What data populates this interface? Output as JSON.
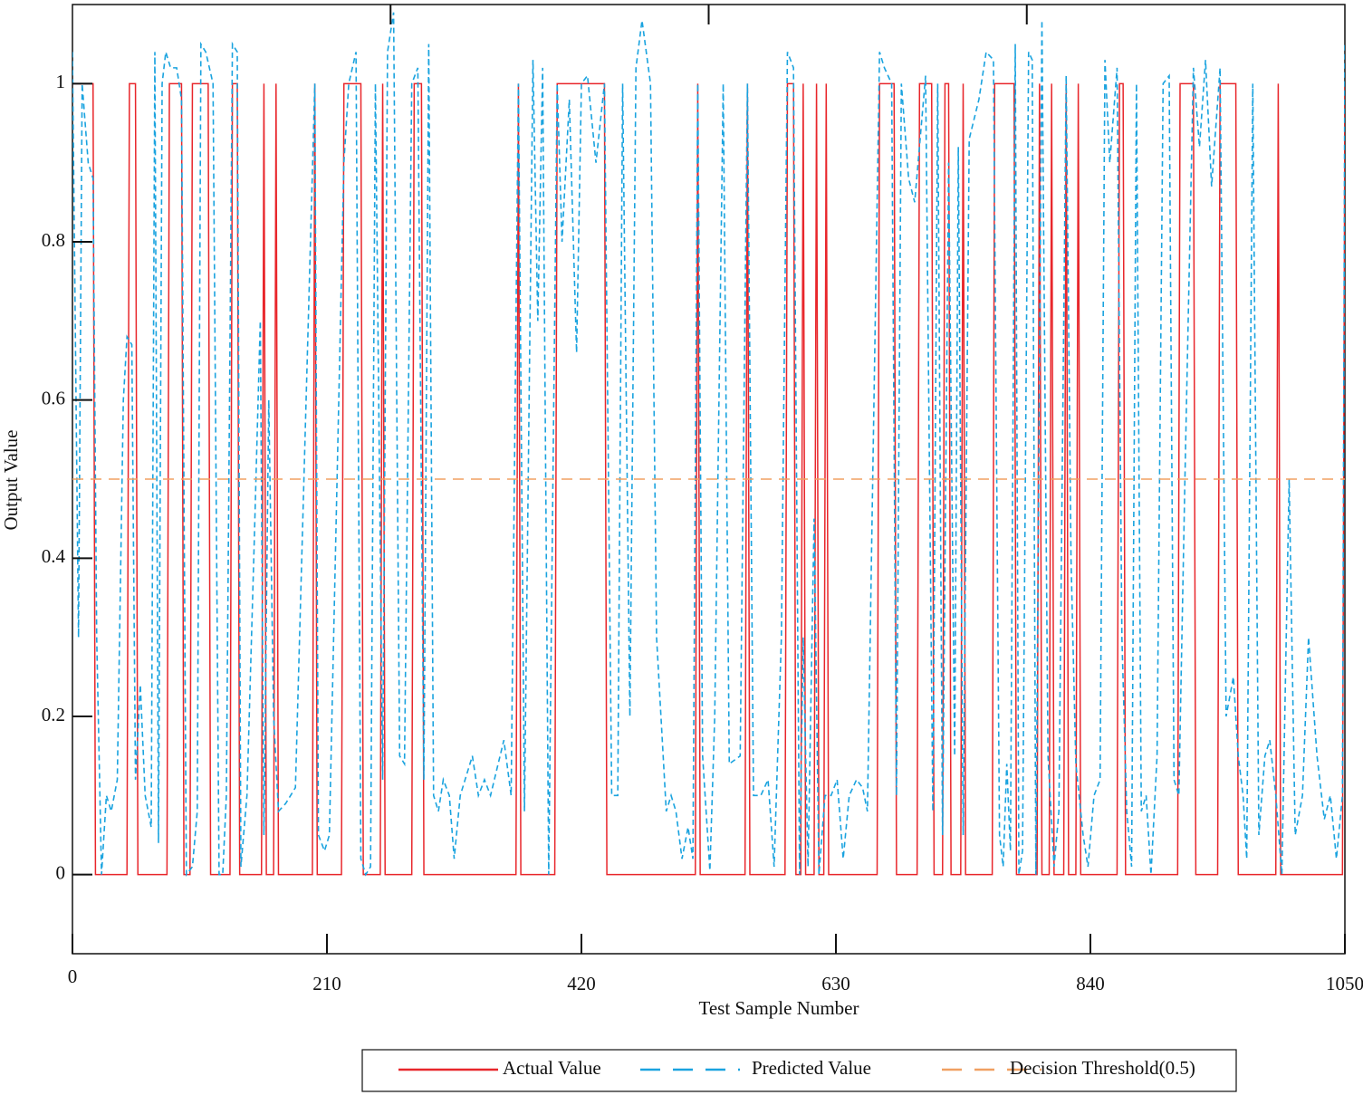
{
  "chart_data": {
    "type": "line",
    "xlabel": "Test Sample Number",
    "ylabel": "Output Value",
    "xlim": [
      0,
      1050
    ],
    "ylim": [
      -0.1,
      1.1
    ],
    "xticks": [
      0,
      210,
      420,
      630,
      840,
      1050
    ],
    "x2ticks": [
      262.5,
      525,
      787.5
    ],
    "yticks": [
      0,
      0.2,
      0.4,
      0.6,
      0.8,
      1
    ],
    "legend": "bottom",
    "series": [
      {
        "name": "Actual Value",
        "color": "#e8262b",
        "style": "solid",
        "x": [
          0,
          17,
          19,
          45,
          47,
          52,
          54,
          78,
          80,
          90,
          92,
          97,
          99,
          112,
          114,
          130,
          132,
          136,
          138,
          156,
          158,
          160,
          166,
          168,
          170,
          198,
          200,
          202,
          222,
          224,
          238,
          240,
          254,
          256,
          258,
          280,
          282,
          288,
          290,
          366,
          368,
          370,
          398,
          400,
          439,
          441,
          514,
          516,
          518,
          555,
          557,
          559,
          588,
          590,
          595,
          597,
          601,
          603,
          605,
          612,
          614,
          616,
          620,
          622,
          624,
          664,
          666,
          678,
          680,
          697,
          699,
          709,
          711,
          718,
          720,
          723,
          725,
          733,
          735,
          737,
          759,
          761,
          777,
          779,
          796,
          798,
          800,
          806,
          808,
          810,
          818,
          820,
          822,
          828,
          830,
          832,
          862,
          864,
          867,
          869,
          912,
          914,
          925,
          927,
          945,
          947,
          960,
          962,
          993,
          995,
          997,
          1048,
          1050
        ],
        "values": [
          1,
          1,
          0,
          0,
          1,
          1,
          0,
          0,
          1,
          1,
          0,
          0,
          1,
          1,
          0,
          0,
          1,
          1,
          0,
          0,
          1,
          0,
          0,
          1,
          0,
          0,
          1,
          0,
          0,
          1,
          1,
          0,
          0,
          1,
          0,
          0,
          1,
          1,
          0,
          0,
          1,
          0,
          0,
          1,
          1,
          0,
          0,
          1,
          0,
          0,
          1,
          0,
          0,
          1,
          1,
          0,
          0,
          1,
          0,
          0,
          1,
          0,
          0,
          1,
          0,
          0,
          1,
          1,
          0,
          0,
          1,
          1,
          0,
          0,
          1,
          1,
          0,
          0,
          1,
          0,
          0,
          1,
          1,
          0,
          0,
          1,
          0,
          0,
          1,
          0,
          0,
          1,
          0,
          0,
          1,
          0,
          0,
          1,
          1,
          0,
          0,
          1,
          1,
          0,
          0,
          1,
          1,
          0,
          0,
          1,
          0,
          0,
          1
        ]
      },
      {
        "name": "Predicted Value",
        "color": "#1aa3df",
        "style": "dashed",
        "x": [
          0,
          5,
          8,
          13,
          17,
          20,
          24,
          28,
          32,
          37,
          42,
          45,
          49,
          52,
          56,
          60,
          65,
          68,
          71,
          74,
          77,
          81,
          86,
          90,
          94,
          99,
          103,
          106,
          110,
          116,
          121,
          124,
          127,
          132,
          136,
          139,
          144,
          150,
          155,
          158,
          162,
          166,
          170,
          176,
          184,
          200,
          203,
          208,
          212,
          224,
          228,
          234,
          238,
          242,
          246,
          250,
          256,
          260,
          265,
          270,
          274,
          280,
          285,
          290,
          294,
          298,
          302,
          306,
          311,
          315,
          320,
          330,
          335,
          340,
          345,
          356,
          362,
          368,
          373,
          380,
          384,
          388,
          393,
          400,
          404,
          410,
          416,
          420,
          425,
          432,
          439,
          445,
          450,
          454,
          460,
          465,
          470,
          477,
          482,
          490,
          494,
          498,
          503,
          508,
          512,
          516,
          520,
          526,
          530,
          537,
          542,
          551,
          557,
          562,
          568,
          574,
          579,
          585,
          590,
          595,
          600,
          603,
          607,
          612,
          616,
          621,
          626,
          631,
          636,
          641,
          647,
          652,
          656,
          666,
          670,
          676,
          680,
          684,
          690,
          695,
          704,
          710,
          714,
          718,
          723,
          728,
          731,
          735,
          740,
          748,
          754,
          760,
          765,
          768,
          771,
          774,
          778,
          781,
          784,
          789,
          792,
          795,
          800,
          805,
          810,
          814,
          820,
          824,
          828,
          834,
          838,
          843,
          848,
          852,
          856,
          862,
          866,
          870,
          874,
          878,
          882,
          886,
          890,
          895,
          900,
          905,
          909,
          913,
          918,
          925,
          930,
          935,
          940,
          947,
          952,
          958,
          962,
          966,
          969,
          974,
          979,
          984,
          988,
          993,
          998,
          1004,
          1009,
          1015,
          1020,
          1027,
          1033,
          1038,
          1043,
          1048,
          1050
        ],
        "values": [
          1.04,
          0.3,
          1.0,
          0.9,
          0.88,
          0.3,
          0,
          0.1,
          0.08,
          0.12,
          0.6,
          0.68,
          0.67,
          0.12,
          0.24,
          0.1,
          0.06,
          1.04,
          0.04,
          1.0,
          1.04,
          1.02,
          1.02,
          0.98,
          0.0,
          0.01,
          0.08,
          1.05,
          1.04,
          1.0,
          0.0,
          0.0,
          0.1,
          1.05,
          1.04,
          0.01,
          0.1,
          0.42,
          0.7,
          0.05,
          0.6,
          0.2,
          0.08,
          0.09,
          0.11,
          1.0,
          0.05,
          0.03,
          0.05,
          0.9,
          1.0,
          1.04,
          0.02,
          0.0,
          0.01,
          1.0,
          0.12,
          1.04,
          1.09,
          0.15,
          0.14,
          1.0,
          1.02,
          0.12,
          1.05,
          0.1,
          0.08,
          0.12,
          0.1,
          0.02,
          0.1,
          0.15,
          0.1,
          0.12,
          0.1,
          0.17,
          0.1,
          1.0,
          0.08,
          1.03,
          0.7,
          1.02,
          0.0,
          1.0,
          0.8,
          0.98,
          0.66,
          1.0,
          1.01,
          0.9,
          1.0,
          0.1,
          0.1,
          1.0,
          0.2,
          1.02,
          1.08,
          1.0,
          0.3,
          0.08,
          0.1,
          0.08,
          0.02,
          0.06,
          0.02,
          1.0,
          0.15,
          0.005,
          0.2,
          1.0,
          0.14,
          0.15,
          1.0,
          0.1,
          0.1,
          0.12,
          0.01,
          0.3,
          1.04,
          1.02,
          0.0,
          0.3,
          0.01,
          0.45,
          0.0,
          0.1,
          0.1,
          0.12,
          0.02,
          0.1,
          0.12,
          0.11,
          0.08,
          1.04,
          1.02,
          1.0,
          0.1,
          1.0,
          0.88,
          0.85,
          1.01,
          0.08,
          1.0,
          0.05,
          0.9,
          0.15,
          0.92,
          0.05,
          0.93,
          0.98,
          1.04,
          1.03,
          0.05,
          0.01,
          0.14,
          0.03,
          1.05,
          0.0,
          0.03,
          1.04,
          1.03,
          0.0,
          1.08,
          0.15,
          0.01,
          0.08,
          1.01,
          0.4,
          0.14,
          0.05,
          0.01,
          0.1,
          0.12,
          1.03,
          0.9,
          1.02,
          0.3,
          0.08,
          0.01,
          1.0,
          0.08,
          0.1,
          0.0,
          0.15,
          1.0,
          1.01,
          0.12,
          0.1,
          0.5,
          1.02,
          0.92,
          1.03,
          0.87,
          1.02,
          0.2,
          0.25,
          0.15,
          0.1,
          0.02,
          1.0,
          0.05,
          0.15,
          0.17,
          0.1,
          0.0,
          0.5,
          0.05,
          0.1,
          0.3,
          0.15,
          0.07,
          0.1,
          0.02,
          0.1,
          1.05
        ]
      },
      {
        "name": "Decision Threshold(0.5)",
        "color": "#f0a062",
        "style": "dashed",
        "x": [
          0,
          1050
        ],
        "values": [
          0.5,
          0.5
        ]
      }
    ]
  }
}
